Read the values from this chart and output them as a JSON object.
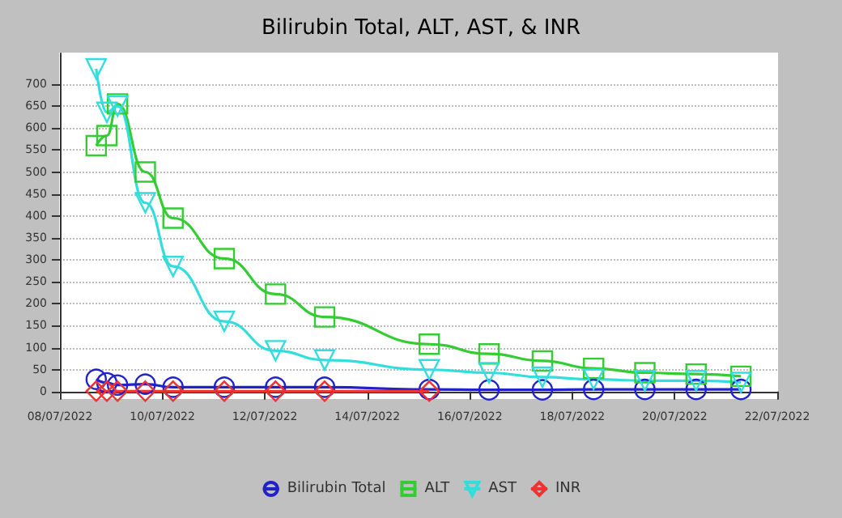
{
  "chart_data": {
    "type": "line",
    "title": "Bilirubin Total, ALT, AST, & INR",
    "x": [
      "2022-07-08T17:00",
      "2022-07-08T22:00",
      "2022-07-09T03:00",
      "2022-07-09T16:00",
      "2022-07-10T05:00",
      "2022-07-11T05:00",
      "2022-07-12T05:00",
      "2022-07-13T04:00",
      "2022-07-15T05:00",
      "2022-07-16T09:00",
      "2022-07-17T10:00",
      "2022-07-18T10:00",
      "2022-07-19T10:00",
      "2022-07-20T10:00",
      "2022-07-21T07:00"
    ],
    "series": [
      {
        "name": "Bilirubin Total",
        "color": "#2222cc",
        "marker": "circle",
        "values": [
          28,
          20,
          15,
          17,
          10,
          10,
          10,
          10,
          5,
          4,
          4,
          5,
          5,
          5,
          5
        ]
      },
      {
        "name": "ALT",
        "color": "#33cc33",
        "marker": "square",
        "values": [
          560,
          583,
          655,
          500,
          395,
          303,
          222,
          170,
          108,
          86,
          70,
          53,
          43,
          40,
          35
        ]
      },
      {
        "name": "AST",
        "color": "#33dddd",
        "marker": "triangle",
        "values": [
          735,
          636,
          650,
          430,
          285,
          160,
          93,
          72,
          50,
          43,
          33,
          28,
          25,
          25,
          21
        ]
      },
      {
        "name": "INR",
        "color": "#ee3333",
        "marker": "diamond",
        "values": [
          1,
          1,
          1,
          1,
          1,
          1,
          1,
          1,
          1,
          null,
          null,
          null,
          null,
          null,
          null
        ]
      }
    ],
    "xlim": [
      "2022-07-08",
      "2022-07-22"
    ],
    "xticks": [
      {
        "value": "2022-07-08",
        "label": "08/07/2022"
      },
      {
        "value": "2022-07-10",
        "label": "10/07/2022"
      },
      {
        "value": "2022-07-12",
        "label": "12/07/2022"
      },
      {
        "value": "2022-07-14",
        "label": "14/07/2022"
      },
      {
        "value": "2022-07-16",
        "label": "16/07/2022"
      },
      {
        "value": "2022-07-18",
        "label": "18/07/2022"
      },
      {
        "value": "2022-07-20",
        "label": "20/07/2022"
      },
      {
        "value": "2022-07-22",
        "label": "22/07/2022"
      }
    ],
    "ylim": [
      -15,
      770
    ],
    "yticks": [
      0,
      50,
      100,
      150,
      200,
      250,
      300,
      350,
      400,
      450,
      500,
      550,
      600,
      650,
      700
    ],
    "grid": "y",
    "legend": "bottom"
  }
}
